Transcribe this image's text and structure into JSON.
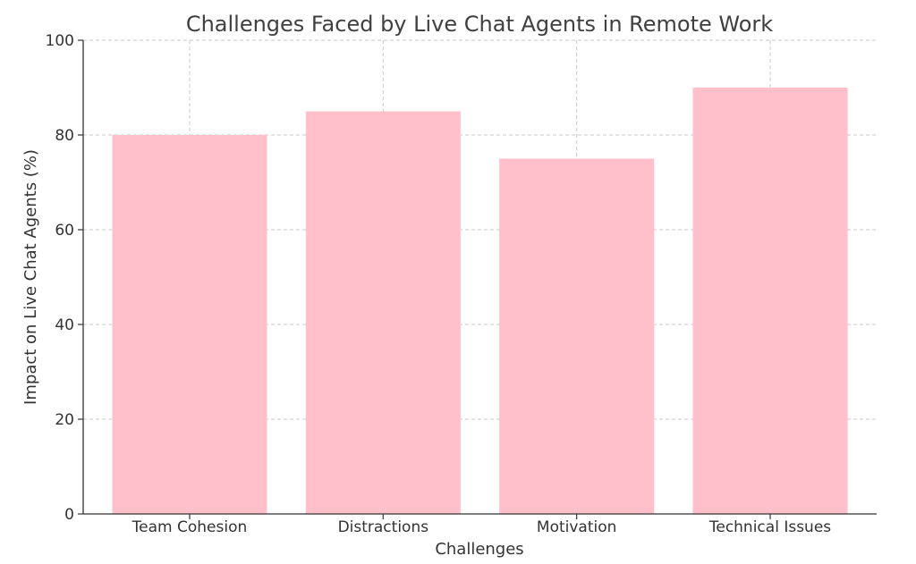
{
  "chart_data": {
    "type": "bar",
    "title": "Challenges Faced by Live Chat Agents in Remote Work",
    "xlabel": "Challenges",
    "ylabel": "Impact on Live Chat Agents (%)",
    "categories": [
      "Team Cohesion",
      "Distractions",
      "Motivation",
      "Technical Issues"
    ],
    "values": [
      80,
      85,
      75,
      90
    ],
    "ylim": [
      0,
      100
    ],
    "yticks": [
      0,
      20,
      40,
      60,
      80,
      100
    ],
    "grid": true,
    "bar_color": "#FFC0CB"
  }
}
